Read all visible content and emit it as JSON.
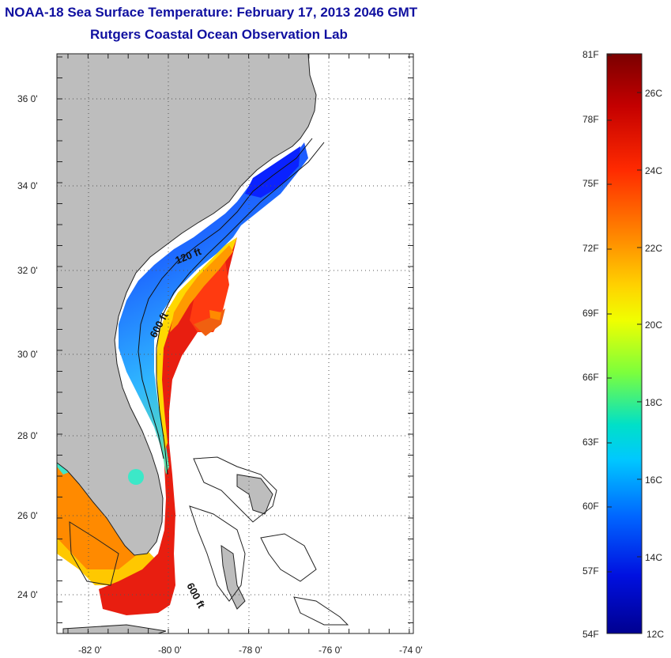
{
  "header": {
    "title": "NOAA-18 Sea Surface Temperature:  February 17, 2013 2046 GMT",
    "subtitle": "Rutgers Coastal Ocean Observation Lab"
  },
  "map": {
    "latitude_labels": [
      "36 0'",
      "34 0'",
      "32 0'",
      "30 0'",
      "28 0'",
      "26 0'",
      "24 0'"
    ],
    "longitude_labels": [
      "-82 0'",
      "-80 0'",
      "-78 0'",
      "-76 0'",
      "-74 0'"
    ],
    "contour_labels": [
      "120 ft",
      "600 ft",
      "600 ft"
    ],
    "land_color": "#bdbdbd"
  },
  "colorbar": {
    "fahrenheit_labels": [
      "81F",
      "78F",
      "75F",
      "72F",
      "69F",
      "66F",
      "63F",
      "60F",
      "57F",
      "54F"
    ],
    "celsius_labels": [
      "26C",
      "24C",
      "22C",
      "20C",
      "18C",
      "16C",
      "14C",
      "12C"
    ],
    "colors": [
      "#7a0000",
      "#c40000",
      "#ff2a00",
      "#ff8c00",
      "#ffd200",
      "#f0ff00",
      "#7cff3c",
      "#00e0c8",
      "#00c8ff",
      "#0064ff",
      "#0010e0",
      "#000090"
    ]
  }
}
